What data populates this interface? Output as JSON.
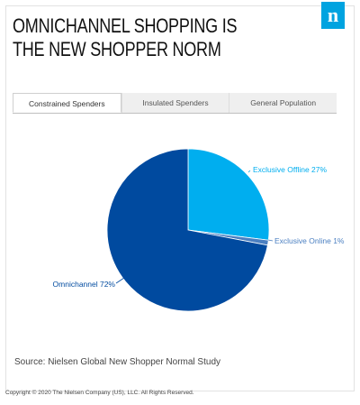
{
  "header": {
    "title": "OMNICHANNEL SHOPPING IS THE NEW SHOPPER NORM",
    "logo_letter": "n",
    "logo_color": "#00a3e0"
  },
  "tabs": [
    {
      "label": "Constrained Spenders",
      "active": true
    },
    {
      "label": "Insulated Spenders",
      "active": false
    },
    {
      "label": "General Population",
      "active": false
    }
  ],
  "chart_data": {
    "type": "pie",
    "slices": [
      {
        "label": "Exclusive Offline 27%",
        "value": 27,
        "color": "#00aeef"
      },
      {
        "label": "Exclusive Online 1%",
        "value": 1,
        "color": "#4a7fc1"
      },
      {
        "label": "Omnichannel 72%",
        "value": 72,
        "color": "#004a9f"
      }
    ],
    "start": "12 o'clock",
    "direction": "clockwise",
    "legend": "none"
  },
  "footer": {
    "source": "Source: Nielsen Global New Shopper Normal Study",
    "copyright": "Copyright © 2020 The Nielsen Company (US), LLC. All Rights Reserved."
  }
}
